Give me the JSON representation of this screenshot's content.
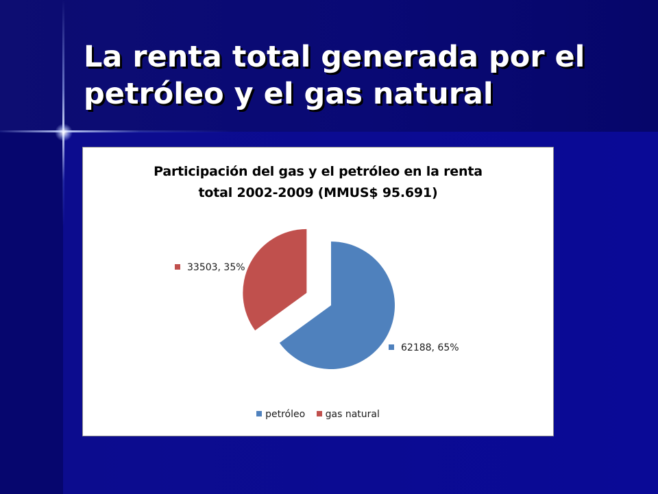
{
  "slide": {
    "title_lines": [
      "La renta total generada por el",
      "petróleo y el gas natural"
    ]
  },
  "chart_data": {
    "type": "pie",
    "title_lines": [
      "Participación del gas y el petróleo en la renta",
      "total 2002-2009 (MMUS$ 95.691)"
    ],
    "categories": [
      "petróleo",
      "gas natural"
    ],
    "values": [
      62188,
      33503
    ],
    "percents": [
      65,
      35
    ],
    "data_labels": [
      "62188, 65%",
      "33503, 35%"
    ],
    "colors": [
      "#4f81bd",
      "#c0504d"
    ],
    "exploded": [
      "gas natural"
    ],
    "legend_position": "bottom"
  }
}
